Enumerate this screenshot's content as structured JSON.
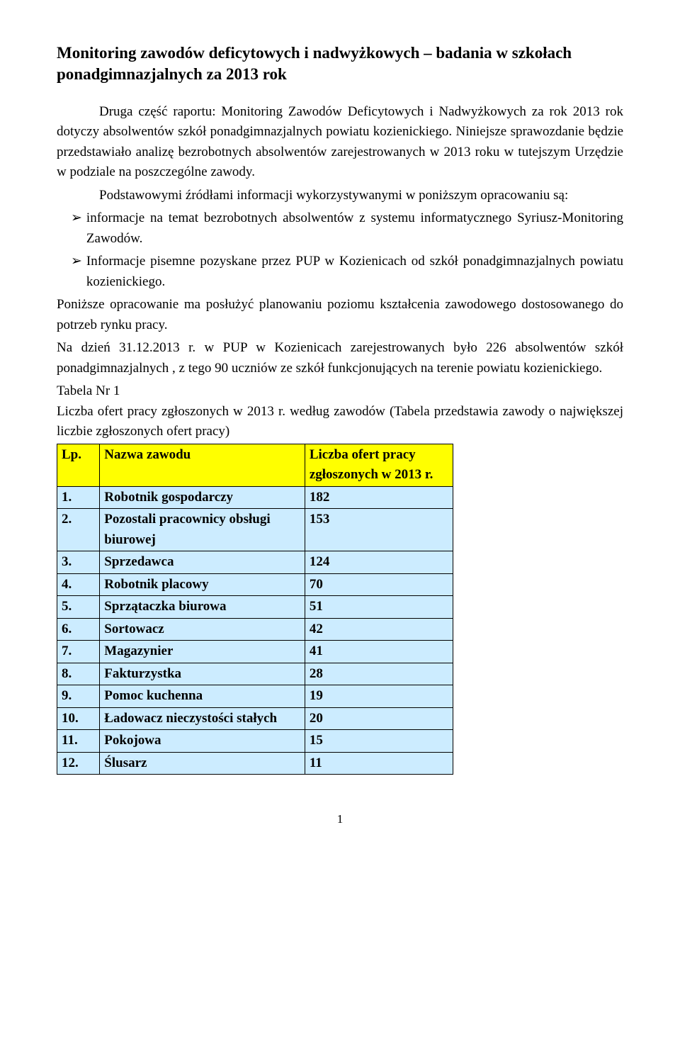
{
  "title": "Monitoring zawodów deficytowych i nadwyżkowych – badania w szkołach ponadgimnazjalnych za 2013 rok",
  "para1_a": "Druga część raportu: Monitoring Zawodów Deficytowych i Nadwyżkowych za rok 2013 rok dotyczy absolwentów szkół ponadgimnazjalnych powiatu kozienickiego. Niniejsze sprawozdanie będzie przedstawiało analizę bezrobotnych absolwentów zarejestrowanych w 2013 roku w tutejszym Urzędzie w podziale na poszczególne zawody.",
  "para1_b": "Podstawowymi źródłami informacji wykorzystywanymi w poniższym opracowaniu są:",
  "bullets": [
    "informacje na temat bezrobotnych absolwentów z systemu informatycznego Syriusz-Monitoring Zawodów.",
    "Informacje pisemne pozyskane przez PUP w Kozienicach od szkół ponadgimnazjalnych powiatu kozienickiego."
  ],
  "para2": "Poniższe opracowanie ma posłużyć planowaniu poziomu kształcenia zawodowego dostosowanego do potrzeb rynku pracy.",
  "para3": "Na dzień 31.12.2013 r. w PUP w Kozienicach zarejestrowanych było 226 absolwentów szkół ponadgimnazjalnych , z tego 90 uczniów ze szkół funkcjonujących na terenie powiatu kozienickiego.",
  "table_label": "Tabela Nr 1",
  "table_caption": "Liczba ofert pracy zgłoszonych w 2013 r. według zawodów (Tabela przedstawia zawody o największej liczbie zgłoszonych ofert pracy)",
  "table": {
    "header": {
      "lp": "Lp.",
      "name": "Nazwa zawodu",
      "value": "Liczba ofert pracy zgłoszonych w 2013 r."
    },
    "rows": [
      {
        "lp": "1.",
        "name": "Robotnik gospodarczy",
        "value": "182"
      },
      {
        "lp": "2.",
        "name": "Pozostali pracownicy obsługi biurowej",
        "value": "153"
      },
      {
        "lp": "3.",
        "name": "Sprzedawca",
        "value": "124"
      },
      {
        "lp": "4.",
        "name": "Robotnik placowy",
        "value": "70"
      },
      {
        "lp": "5.",
        "name": "Sprzątaczka biurowa",
        "value": "51"
      },
      {
        "lp": "6.",
        "name": "Sortowacz",
        "value": "42"
      },
      {
        "lp": "7.",
        "name": "Magazynier",
        "value": "41"
      },
      {
        "lp": "8.",
        "name": "Fakturzystka",
        "value": "28"
      },
      {
        "lp": "9.",
        "name": "Pomoc kuchenna",
        "value": "19"
      },
      {
        "lp": "10.",
        "name": "Ładowacz nieczystości stałych",
        "value": "20"
      },
      {
        "lp": "11.",
        "name": "Pokojowa",
        "value": "15"
      },
      {
        "lp": "12.",
        "name": "Ślusarz",
        "value": "11"
      }
    ],
    "header_bg": "#ffff00",
    "row_bg": "#ccecff",
    "border_color": "#000000"
  },
  "page_number": "1"
}
